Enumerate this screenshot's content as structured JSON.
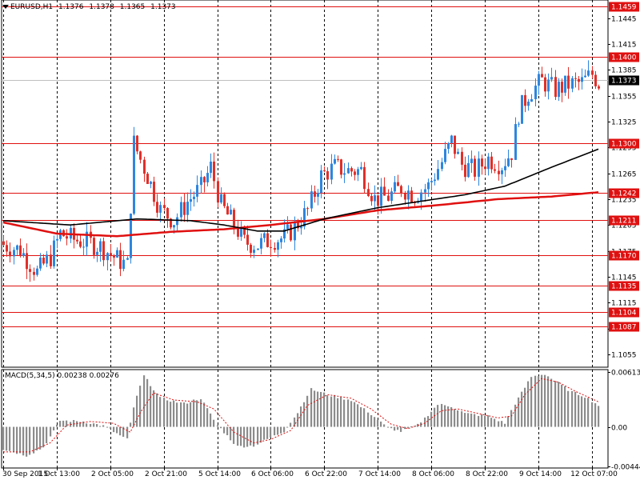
{
  "header": {
    "symbol": "EURUSD,H1",
    "open": "1.1376",
    "high": "1.1378",
    "low": "1.1365",
    "close": "1.1373"
  },
  "macd": {
    "label": "MACD(5,34,5)",
    "main": "0.00238",
    "signal": "0.00276",
    "axis_labels": [
      "0.00613",
      "0.00",
      "-0.00444"
    ]
  },
  "colors": {
    "candle_up": "#2E86DE",
    "candle_down": "#E0302A",
    "sma_slow": "#E01010",
    "sma_fast": "#000000",
    "level_line": "#E01010",
    "price_tag": "#E01010",
    "current_tag": "#000000",
    "macd_hist": "#8C8C8C",
    "macd_signal": "#E01010"
  },
  "chart_data": {
    "type": "candlestick",
    "symbol": "EURUSD",
    "timeframe": "H1",
    "ylim": [
      1.104,
      1.1466
    ],
    "yticks": [
      1.1445,
      1.1415,
      1.1385,
      1.1355,
      1.1325,
      1.1295,
      1.1265,
      1.1235,
      1.1205,
      1.1175,
      1.1145,
      1.1115,
      1.1085,
      1.1055
    ],
    "x_labels": [
      "30 Sep 2015",
      "1 Oct 13:00",
      "2 Oct 05:00",
      "2 Oct 21:00",
      "5 Oct 14:00",
      "6 Oct 06:00",
      "6 Oct 22:00",
      "7 Oct 14:00",
      "8 Oct 06:00",
      "8 Oct 22:00",
      "9 Oct 14:00",
      "12 Oct 07:00"
    ],
    "levels": [
      {
        "value": 1.1459,
        "label": "1.1459"
      },
      {
        "value": 1.14,
        "label": "1.1400"
      },
      {
        "value": 1.13,
        "label": "1.1300"
      },
      {
        "value": 1.1242,
        "label": "1.1242"
      },
      {
        "value": 1.1211,
        "label": "1.1211"
      },
      {
        "value": 1.117,
        "label": "1.1170"
      },
      {
        "value": 1.1135,
        "label": "1.1135"
      },
      {
        "value": 1.1104,
        "label": "1.1104"
      },
      {
        "value": 1.1087,
        "label": "1.1087"
      }
    ],
    "current_price": 1.1373,
    "current_label": "1.1373",
    "close_path": [
      [
        0,
        1.1182
      ],
      [
        5,
        1.1176
      ],
      [
        10,
        1.115
      ],
      [
        14,
        1.1168
      ],
      [
        17,
        1.1195
      ],
      [
        21,
        1.1188
      ],
      [
        25,
        1.1185
      ],
      [
        29,
        1.118
      ],
      [
        33,
        1.1168
      ],
      [
        37,
        1.1158
      ],
      [
        39,
        1.13
      ],
      [
        43,
        1.1262
      ],
      [
        47,
        1.1222
      ],
      [
        51,
        1.121
      ],
      [
        55,
        1.1232
      ],
      [
        59,
        1.1248
      ],
      [
        62,
        1.1272
      ],
      [
        65,
        1.1228
      ],
      [
        69,
        1.1205
      ],
      [
        72,
        1.1185
      ],
      [
        76,
        1.1182
      ],
      [
        80,
        1.1188
      ],
      [
        84,
        1.119
      ],
      [
        87,
        1.1202
      ],
      [
        91,
        1.1222
      ],
      [
        95,
        1.1262
      ],
      [
        99,
        1.1272
      ],
      [
        103,
        1.1268
      ],
      [
        107,
        1.1268
      ],
      [
        111,
        1.1235
      ],
      [
        115,
        1.1238
      ],
      [
        119,
        1.1248
      ],
      [
        123,
        1.124
      ],
      [
        127,
        1.125
      ],
      [
        131,
        1.1278
      ],
      [
        134,
        1.1302
      ],
      [
        137,
        1.1275
      ],
      [
        141,
        1.1268
      ],
      [
        145,
        1.1282
      ],
      [
        149,
        1.1275
      ],
      [
        152,
        1.129
      ],
      [
        154,
        1.1335
      ],
      [
        157,
        1.1358
      ],
      [
        161,
        1.1372
      ],
      [
        165,
        1.1362
      ],
      [
        169,
        1.1368
      ],
      [
        173,
        1.137
      ],
      [
        176,
        1.138
      ],
      [
        178,
        1.137
      ]
    ],
    "sma_fast_pts": [
      [
        0,
        1.121
      ],
      [
        20,
        1.1205
      ],
      [
        40,
        1.1212
      ],
      [
        56,
        1.121
      ],
      [
        66,
        1.1205
      ],
      [
        76,
        1.1198
      ],
      [
        84,
        1.1198
      ],
      [
        96,
        1.1212
      ],
      [
        112,
        1.1225
      ],
      [
        124,
        1.1232
      ],
      [
        138,
        1.124
      ],
      [
        150,
        1.125
      ],
      [
        164,
        1.1272
      ],
      [
        178,
        1.1293
      ]
    ],
    "sma_slow_pts": [
      [
        0,
        1.1208
      ],
      [
        16,
        1.1195
      ],
      [
        34,
        1.1192
      ],
      [
        50,
        1.1197
      ],
      [
        66,
        1.12
      ],
      [
        80,
        1.1205
      ],
      [
        96,
        1.1212
      ],
      [
        112,
        1.1222
      ],
      [
        130,
        1.1228
      ],
      [
        148,
        1.1235
      ],
      [
        164,
        1.1238
      ],
      [
        178,
        1.1243
      ]
    ],
    "macd_ylim": [
      -0.0046,
      0.0064
    ],
    "macd_hist_path": [
      [
        0,
        -0.0025
      ],
      [
        7,
        -0.0032
      ],
      [
        12,
        -0.0023
      ],
      [
        17,
        0.0007
      ],
      [
        24,
        0.0006
      ],
      [
        30,
        0.0001
      ],
      [
        37,
        -0.0014
      ],
      [
        39,
        0.0022
      ],
      [
        42,
        0.0057
      ],
      [
        47,
        0.0032
      ],
      [
        54,
        0.0026
      ],
      [
        59,
        0.0032
      ],
      [
        64,
        0.0002
      ],
      [
        70,
        -0.0022
      ],
      [
        75,
        -0.0021
      ],
      [
        80,
        -0.0012
      ],
      [
        84,
        -0.0005
      ],
      [
        88,
        0.0016
      ],
      [
        92,
        0.0042
      ],
      [
        98,
        0.0035
      ],
      [
        104,
        0.003
      ],
      [
        109,
        0.0017
      ],
      [
        115,
        -0.0001
      ],
      [
        119,
        -0.0005
      ],
      [
        124,
        0.0002
      ],
      [
        130,
        0.0025
      ],
      [
        134,
        0.0023
      ],
      [
        138,
        0.0015
      ],
      [
        145,
        0.0012
      ],
      [
        150,
        0.0004
      ],
      [
        153,
        0.0026
      ],
      [
        158,
        0.0056
      ],
      [
        162,
        0.0059
      ],
      [
        166,
        0.0049
      ],
      [
        170,
        0.0039
      ],
      [
        174,
        0.0034
      ],
      [
        178,
        0.0024
      ]
    ],
    "macd_signal_pts": [
      [
        0,
        -0.0028
      ],
      [
        8,
        -0.0028
      ],
      [
        14,
        -0.0018
      ],
      [
        19,
        0.0002
      ],
      [
        26,
        0.0006
      ],
      [
        33,
        0.0004
      ],
      [
        38,
        -0.0006
      ],
      [
        41,
        0.0016
      ],
      [
        45,
        0.0038
      ],
      [
        51,
        0.003
      ],
      [
        58,
        0.0028
      ],
      [
        63,
        0.002
      ],
      [
        69,
        -0.0006
      ],
      [
        75,
        -0.0018
      ],
      [
        80,
        -0.0014
      ],
      [
        86,
        -0.0004
      ],
      [
        91,
        0.0024
      ],
      [
        97,
        0.0036
      ],
      [
        104,
        0.0032
      ],
      [
        110,
        0.002
      ],
      [
        116,
        0.0003
      ],
      [
        121,
        -0.0002
      ],
      [
        126,
        0.0004
      ],
      [
        131,
        0.0018
      ],
      [
        136,
        0.002
      ],
      [
        142,
        0.0015
      ],
      [
        148,
        0.001
      ],
      [
        152,
        0.0012
      ],
      [
        156,
        0.0036
      ],
      [
        161,
        0.0054
      ],
      [
        166,
        0.005
      ],
      [
        171,
        0.004
      ],
      [
        178,
        0.0028
      ]
    ]
  }
}
